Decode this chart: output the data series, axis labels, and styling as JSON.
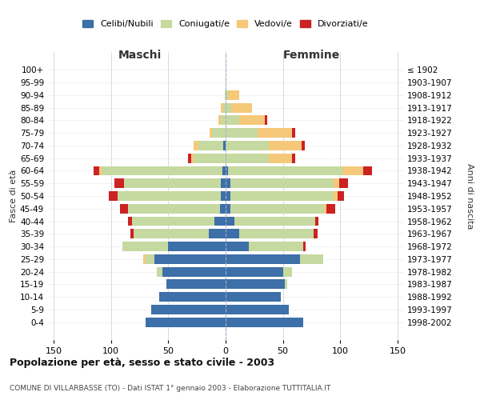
{
  "age_groups": [
    "0-4",
    "5-9",
    "10-14",
    "15-19",
    "20-24",
    "25-29",
    "30-34",
    "35-39",
    "40-44",
    "45-49",
    "50-54",
    "55-59",
    "60-64",
    "65-69",
    "70-74",
    "75-79",
    "80-84",
    "85-89",
    "90-94",
    "95-99",
    "100+"
  ],
  "birth_years": [
    "1998-2002",
    "1993-1997",
    "1988-1992",
    "1983-1987",
    "1978-1982",
    "1973-1977",
    "1968-1972",
    "1963-1967",
    "1958-1962",
    "1953-1957",
    "1948-1952",
    "1943-1947",
    "1938-1942",
    "1933-1937",
    "1928-1932",
    "1923-1927",
    "1918-1922",
    "1913-1917",
    "1908-1912",
    "1903-1907",
    "≤ 1902"
  ],
  "male": {
    "celibi": [
      70,
      65,
      58,
      52,
      55,
      62,
      50,
      15,
      10,
      5,
      4,
      4,
      3,
      0,
      2,
      0,
      0,
      0,
      0,
      0,
      0
    ],
    "coniugati": [
      0,
      0,
      0,
      0,
      5,
      8,
      40,
      65,
      72,
      80,
      90,
      85,
      105,
      28,
      22,
      12,
      4,
      2,
      1,
      0,
      0
    ],
    "vedovi": [
      0,
      0,
      0,
      0,
      0,
      2,
      0,
      0,
      0,
      0,
      0,
      0,
      2,
      2,
      4,
      2,
      2,
      2,
      0,
      0,
      0
    ],
    "divorziati": [
      0,
      0,
      0,
      0,
      0,
      0,
      0,
      3,
      3,
      7,
      8,
      8,
      5,
      3,
      0,
      0,
      0,
      0,
      0,
      0,
      0
    ]
  },
  "female": {
    "nubili": [
      68,
      55,
      48,
      52,
      50,
      65,
      20,
      12,
      8,
      4,
      4,
      4,
      2,
      0,
      0,
      0,
      0,
      0,
      0,
      0,
      0
    ],
    "coniugate": [
      0,
      0,
      0,
      2,
      8,
      20,
      48,
      65,
      70,
      82,
      90,
      90,
      100,
      38,
      38,
      28,
      12,
      5,
      2,
      0,
      0
    ],
    "vedove": [
      0,
      0,
      0,
      0,
      0,
      0,
      0,
      0,
      0,
      2,
      4,
      5,
      18,
      20,
      28,
      30,
      22,
      18,
      10,
      1,
      0
    ],
    "divorziate": [
      0,
      0,
      0,
      0,
      0,
      0,
      2,
      3,
      3,
      8,
      5,
      8,
      8,
      3,
      3,
      3,
      2,
      0,
      0,
      0,
      0
    ]
  },
  "colors": {
    "celibi": "#3d6fa8",
    "coniugati": "#c5d9a0",
    "vedovi": "#f5c87a",
    "divorziati": "#cc2222"
  },
  "xlim": 155,
  "title": "Popolazione per età, sesso e stato civile - 2003",
  "subtitle": "COMUNE DI VILLARBASSE (TO) - Dati ISTAT 1° gennaio 2003 - Elaborazione TUTTITALIA.IT",
  "legend_labels": [
    "Celibi/Nubili",
    "Coniugati/e",
    "Vedovi/e",
    "Divorziati/e"
  ],
  "ylabel_left": "Fasce di età",
  "ylabel_right": "Anni di nascita",
  "xlabel_left": "Maschi",
  "xlabel_right": "Femmine"
}
